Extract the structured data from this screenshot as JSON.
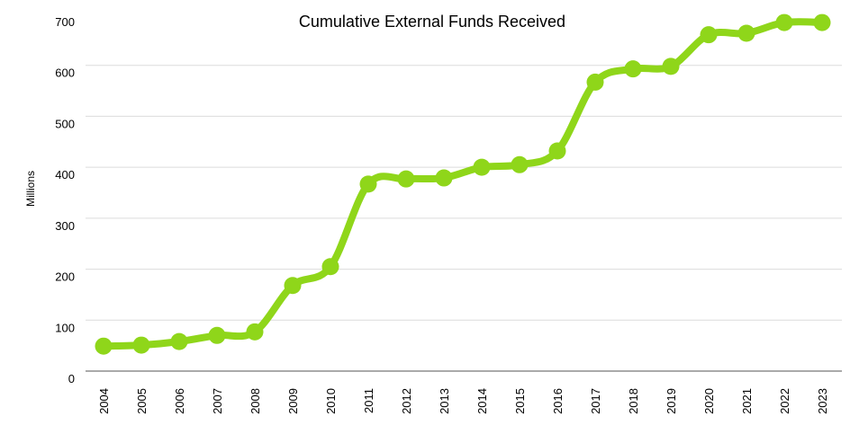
{
  "chart_data": {
    "type": "line",
    "title": "Cumulative External Funds Received",
    "ylabel": "Millions",
    "categories": [
      "2004",
      "2005",
      "2006",
      "2007",
      "2008",
      "2009",
      "2010",
      "2011",
      "2012",
      "2013",
      "2014",
      "2015",
      "2016",
      "2017",
      "2018",
      "2019",
      "2020",
      "2021",
      "2022",
      "2023"
    ],
    "series": [
      {
        "name": "Cumulative External Funds Received",
        "color": "#8fd61a",
        "values": [
          49,
          51,
          58,
          70,
          77,
          168,
          205,
          367,
          377,
          379,
          400,
          405,
          432,
          567,
          593,
          598,
          660,
          663,
          684,
          684
        ]
      }
    ],
    "ylim": [
      0,
      700
    ],
    "yticks": [
      0,
      100,
      200,
      300,
      400,
      500,
      600,
      700
    ],
    "grid": true
  }
}
